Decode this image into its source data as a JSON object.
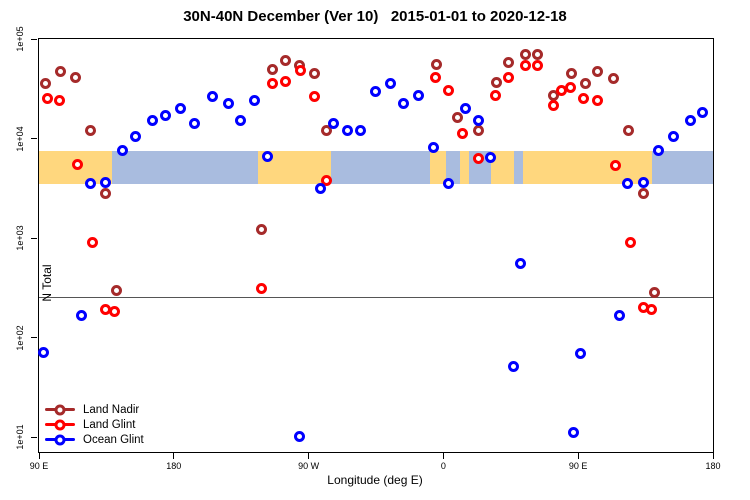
{
  "title": "30N-40N December (Ver 10)   2015-01-01 to 2020-12-18",
  "chart_data": {
    "type": "scatter",
    "title": "30N-40N December (Ver 10)   2015-01-01 to 2020-12-18",
    "xlabel": "Longitude (deg E)",
    "ylabel": "N Total",
    "x_axis": {
      "min": 90,
      "max": 540,
      "unit": "deg E (wrapping eastward from 90E around the globe to 180)",
      "ticks": [
        {
          "lon": 90,
          "label": "90 E"
        },
        {
          "lon": 180,
          "label": "180"
        },
        {
          "lon": 270,
          "label": "90 W"
        },
        {
          "lon": 360,
          "label": "0"
        },
        {
          "lon": 450,
          "label": "90 E"
        },
        {
          "lon": 540,
          "label": "180"
        }
      ]
    },
    "y_axis": {
      "scale": "log",
      "top_value": 100000,
      "bottom_tick_value": 10,
      "ticks": [
        {
          "value": 100000,
          "label": "1e+05"
        },
        {
          "value": 10000,
          "label": "1e+04"
        },
        {
          "value": 1000,
          "label": "1e+03"
        },
        {
          "value": 100,
          "label": "1e+02"
        },
        {
          "value": 10,
          "label": "1e+01"
        }
      ]
    },
    "reference_line": {
      "value": 255,
      "color": "#555555"
    },
    "map_band": {
      "top_value": 7500,
      "bottom_value": 3500,
      "land_color": "#FFD77E",
      "ocean_color": "#A9BCDF",
      "segments": [
        {
          "from": 90,
          "to": 139,
          "surface": "land"
        },
        {
          "from": 139,
          "to": 236,
          "surface": "ocean"
        },
        {
          "from": 236,
          "to": 285,
          "surface": "land"
        },
        {
          "from": 285,
          "to": 351,
          "surface": "ocean"
        },
        {
          "from": 351,
          "to": 362,
          "surface": "land"
        },
        {
          "from": 362,
          "to": 371,
          "surface": "ocean"
        },
        {
          "from": 371,
          "to": 377,
          "surface": "land"
        },
        {
          "from": 377,
          "to": 392,
          "surface": "ocean"
        },
        {
          "from": 392,
          "to": 407,
          "surface": "land"
        },
        {
          "from": 407,
          "to": 413,
          "surface": "ocean"
        },
        {
          "from": 413,
          "to": 499,
          "surface": "land"
        },
        {
          "from": 499,
          "to": 540,
          "surface": "ocean"
        }
      ]
    },
    "series": [
      {
        "name": "Land Nadir",
        "color": "#A52A2A",
        "points": [
          [
            95,
            35000
          ],
          [
            105,
            47000
          ],
          [
            115,
            41000
          ],
          [
            125,
            12000
          ],
          [
            135,
            2800
          ],
          [
            142,
            290
          ],
          [
            239,
            1200
          ],
          [
            246,
            49000
          ],
          [
            255,
            60000
          ],
          [
            264,
            54000
          ],
          [
            274,
            44000
          ],
          [
            282,
            12000
          ],
          [
            356,
            55000
          ],
          [
            370,
            16000
          ],
          [
            384,
            12000
          ],
          [
            396,
            36000
          ],
          [
            404,
            57000
          ],
          [
            415,
            69000
          ],
          [
            423,
            69000
          ],
          [
            434,
            27000
          ],
          [
            446,
            44000
          ],
          [
            455,
            35000
          ],
          [
            463,
            47000
          ],
          [
            474,
            40000
          ],
          [
            484,
            12000
          ],
          [
            494,
            2800
          ],
          [
            501,
            280
          ]
        ]
      },
      {
        "name": "Land Glint",
        "color": "#FF0000",
        "points": [
          [
            96,
            25000
          ],
          [
            104,
            24000
          ],
          [
            116,
            5400
          ],
          [
            126,
            900
          ],
          [
            135,
            190
          ],
          [
            141,
            180
          ],
          [
            239,
            310
          ],
          [
            246,
            35000
          ],
          [
            255,
            37000
          ],
          [
            265,
            48000
          ],
          [
            274,
            26000
          ],
          [
            282,
            3700
          ],
          [
            355,
            41000
          ],
          [
            364,
            30000
          ],
          [
            373,
            11000
          ],
          [
            384,
            6200
          ],
          [
            395,
            27000
          ],
          [
            404,
            41000
          ],
          [
            415,
            54000
          ],
          [
            423,
            54000
          ],
          [
            434,
            21000
          ],
          [
            439,
            30000
          ],
          [
            445,
            32000
          ],
          [
            454,
            25000
          ],
          [
            463,
            24000
          ],
          [
            475,
            5300
          ],
          [
            485,
            900
          ],
          [
            494,
            200
          ],
          [
            499,
            190
          ]
        ]
      },
      {
        "name": "Ocean Glint",
        "color": "#0000FF",
        "points": [
          [
            93,
            70
          ],
          [
            119,
            165
          ],
          [
            125,
            3500
          ],
          [
            135,
            3600
          ],
          [
            146,
            7500
          ],
          [
            155,
            10300
          ],
          [
            166,
            15000
          ],
          [
            175,
            17000
          ],
          [
            185,
            20000
          ],
          [
            194,
            14000
          ],
          [
            206,
            26000
          ],
          [
            217,
            22000
          ],
          [
            225,
            15000
          ],
          [
            234,
            24000
          ],
          [
            243,
            6500
          ],
          [
            264,
            10
          ],
          [
            278,
            3100
          ],
          [
            287,
            14000
          ],
          [
            296,
            12000
          ],
          [
            305,
            12000
          ],
          [
            315,
            29000
          ],
          [
            325,
            35000
          ],
          [
            334,
            22000
          ],
          [
            344,
            27000
          ],
          [
            354,
            8000
          ],
          [
            364,
            3500
          ],
          [
            375,
            20000
          ],
          [
            384,
            15000
          ],
          [
            392,
            6400
          ],
          [
            407,
            50
          ],
          [
            412,
            550
          ],
          [
            447,
            11
          ],
          [
            452,
            68
          ],
          [
            478,
            165
          ],
          [
            483,
            3500
          ],
          [
            494,
            3600
          ],
          [
            504,
            7500
          ],
          [
            514,
            10300
          ],
          [
            525,
            15000
          ],
          [
            533,
            18000
          ]
        ]
      }
    ],
    "legend_position": "bottom-left",
    "grid": false
  }
}
